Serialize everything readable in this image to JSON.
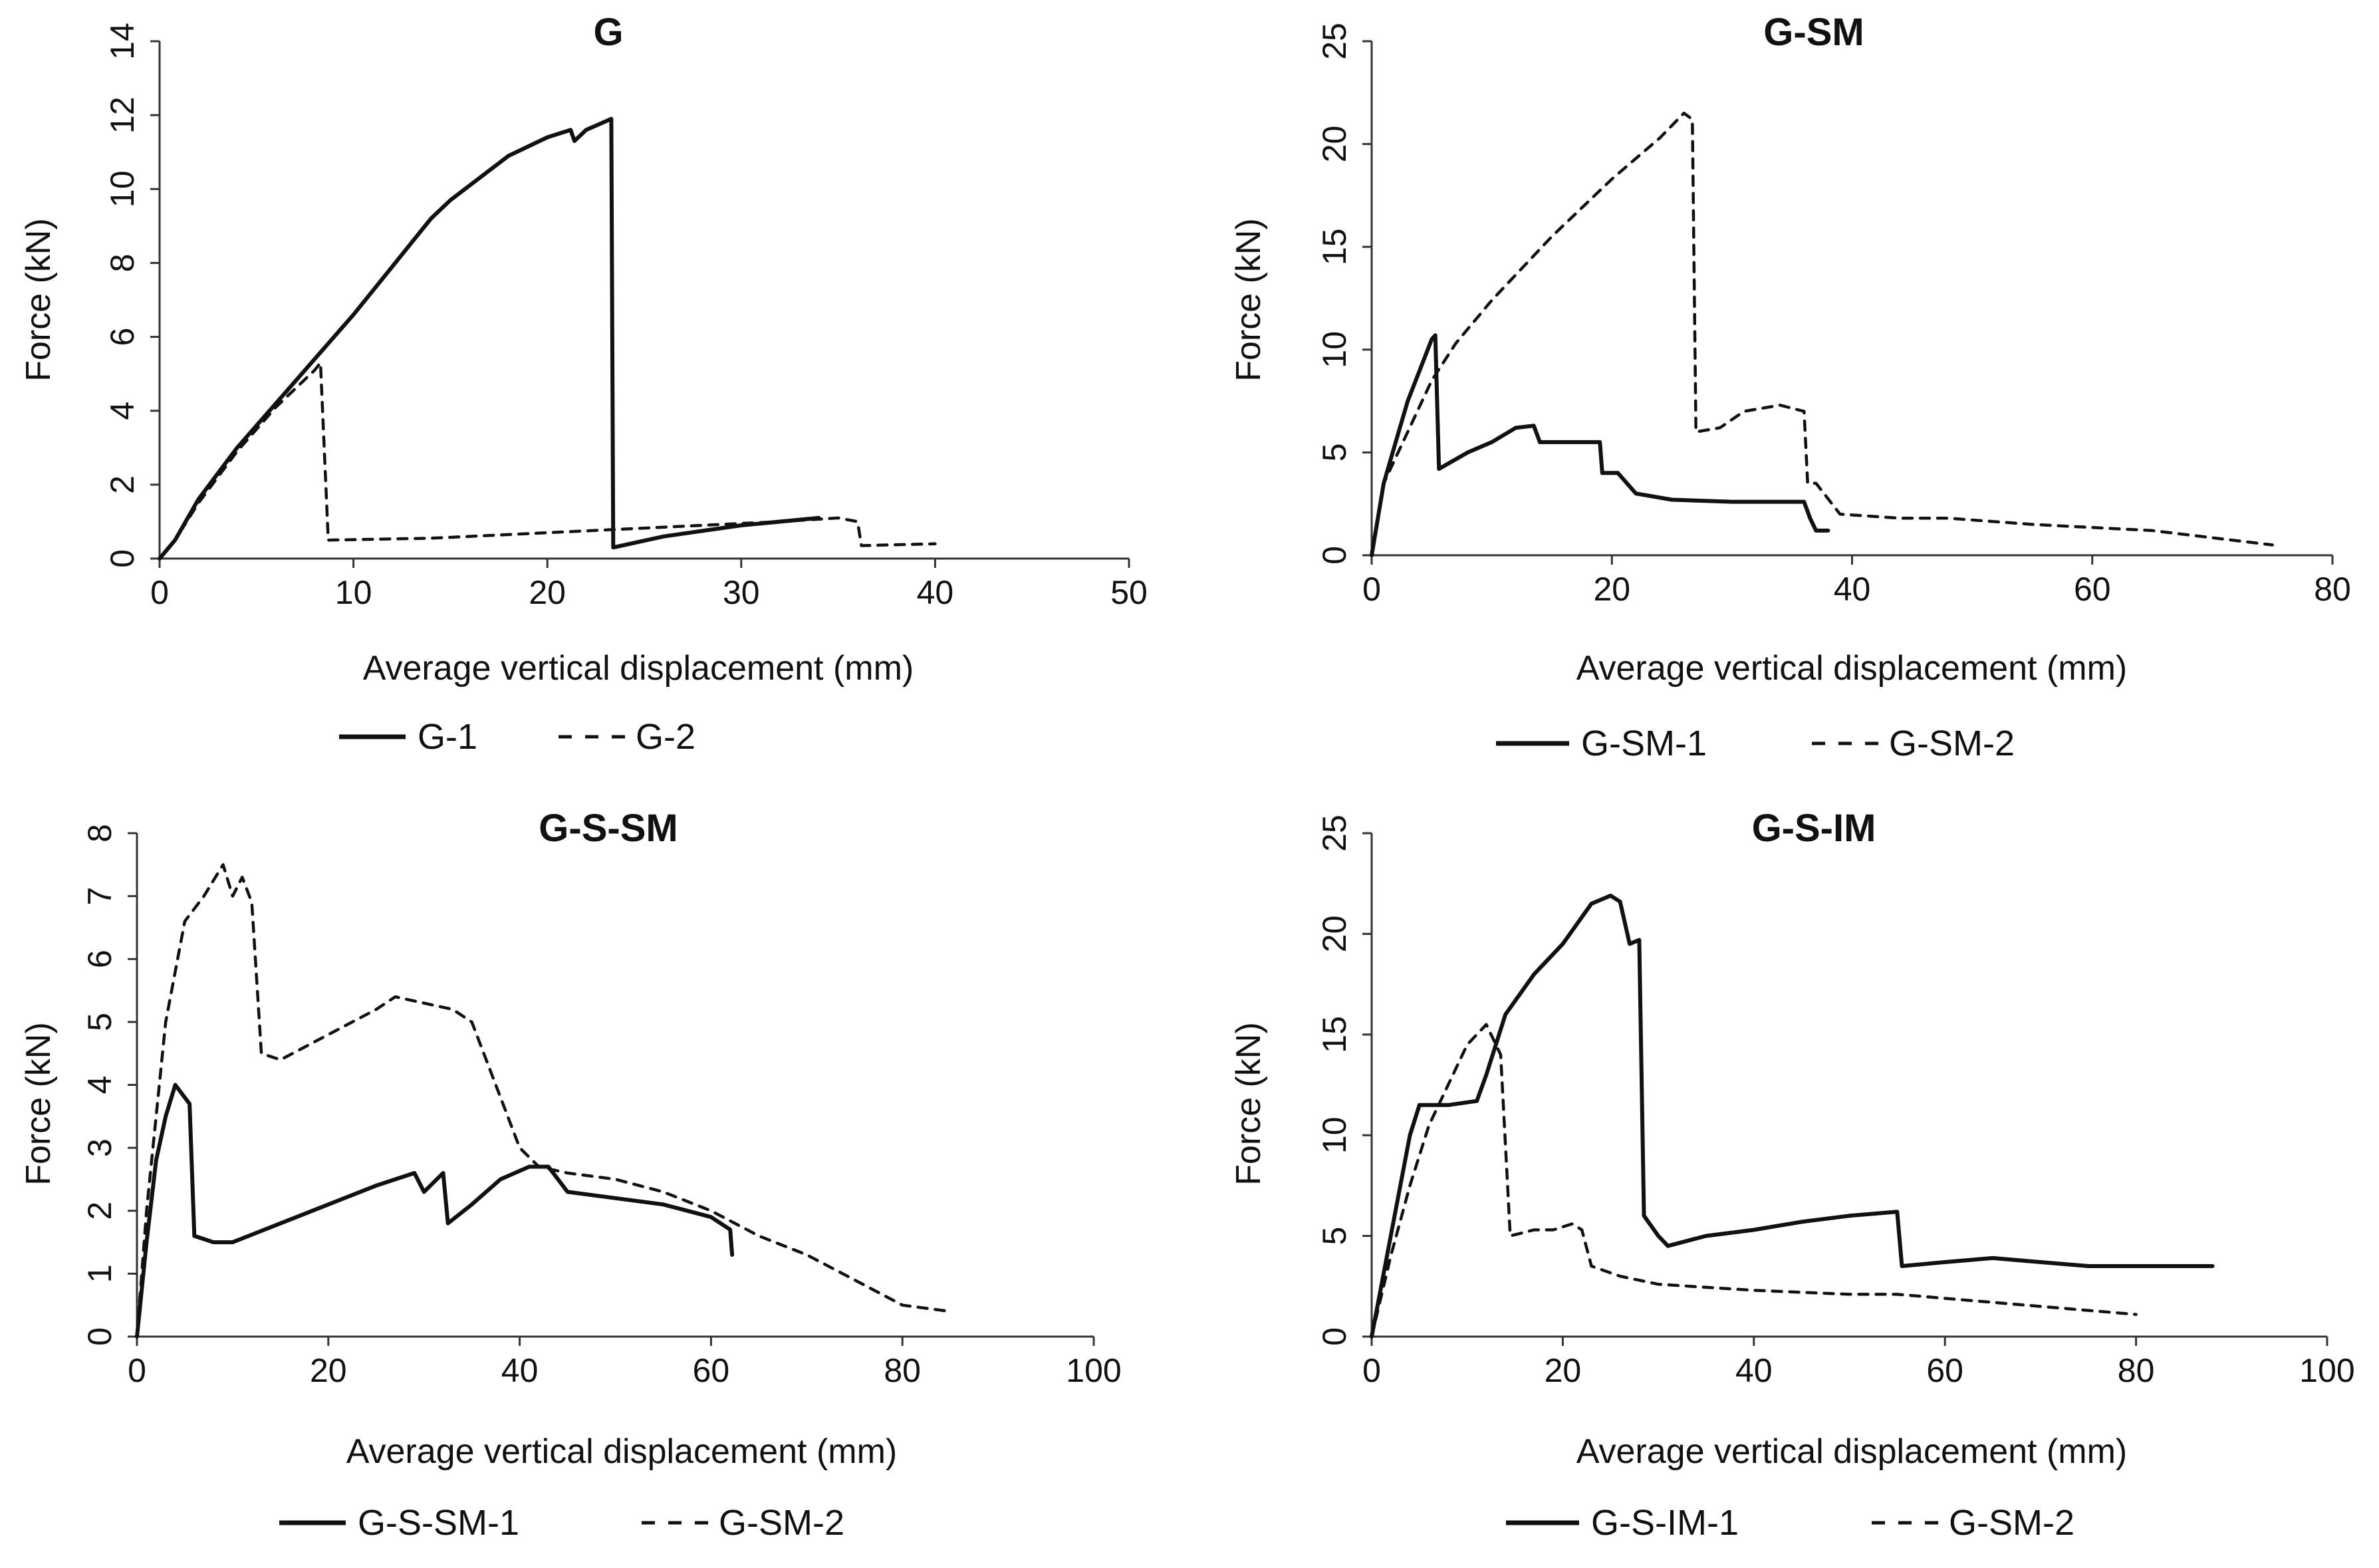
{
  "chart_data": [
    {
      "type": "line",
      "title": "G",
      "xlabel": "Average vertical displacement (mm)",
      "ylabel": "Force (kN)",
      "xlim": [
        0,
        50
      ],
      "ylim": [
        0,
        14
      ],
      "xticks": [
        0,
        10,
        20,
        30,
        40,
        50
      ],
      "yticks": [
        0,
        2,
        4,
        6,
        8,
        10,
        12,
        14
      ],
      "grid": false,
      "legend_position": "bottom",
      "series": [
        {
          "name": "G-1",
          "style": "solid",
          "points": [
            [
              0,
              0
            ],
            [
              0.8,
              0.5
            ],
            [
              2,
              1.6
            ],
            [
              4,
              3
            ],
            [
              6,
              4.2
            ],
            [
              8,
              5.4
            ],
            [
              10,
              6.6
            ],
            [
              12,
              7.9
            ],
            [
              14,
              9.2
            ],
            [
              15,
              9.7
            ],
            [
              16,
              10.1
            ],
            [
              18,
              10.9
            ],
            [
              20,
              11.4
            ],
            [
              21.2,
              11.6
            ],
            [
              21.4,
              11.3
            ],
            [
              22,
              11.6
            ],
            [
              23.3,
              11.9
            ],
            [
              23.4,
              0.3
            ],
            [
              26,
              0.6
            ],
            [
              30,
              0.9
            ],
            [
              34,
              1.1
            ]
          ]
        },
        {
          "name": "G-2",
          "style": "dashed",
          "points": [
            [
              0,
              0
            ],
            [
              0.8,
              0.5
            ],
            [
              2,
              1.5
            ],
            [
              4,
              2.9
            ],
            [
              6,
              4.1
            ],
            [
              8,
              5.1
            ],
            [
              8.3,
              5.3
            ],
            [
              8.7,
              0.5
            ],
            [
              14,
              0.55
            ],
            [
              20,
              0.7
            ],
            [
              28,
              0.9
            ],
            [
              32,
              1.0
            ],
            [
              35,
              1.1
            ],
            [
              36,
              1.0
            ],
            [
              36.2,
              0.35
            ],
            [
              40,
              0.4
            ]
          ]
        }
      ]
    },
    {
      "type": "line",
      "title": "G-SM",
      "xlabel": "Average vertical displacement (mm)",
      "ylabel": "Force (kN)",
      "xlim": [
        0,
        80
      ],
      "ylim": [
        0,
        25
      ],
      "xticks": [
        0,
        20,
        40,
        60,
        80
      ],
      "yticks": [
        0,
        5,
        10,
        15,
        20,
        25
      ],
      "grid": false,
      "legend_position": "bottom",
      "series": [
        {
          "name": "G-SM-1",
          "style": "solid",
          "points": [
            [
              0,
              0
            ],
            [
              1,
              3.5
            ],
            [
              2,
              5.5
            ],
            [
              3,
              7.5
            ],
            [
              4,
              9
            ],
            [
              5,
              10.5
            ],
            [
              5.3,
              10.7
            ],
            [
              5.6,
              4.2
            ],
            [
              8,
              5
            ],
            [
              10,
              5.5
            ],
            [
              12,
              6.2
            ],
            [
              13.5,
              6.3
            ],
            [
              14,
              5.5
            ],
            [
              16,
              5.5
            ],
            [
              19,
              5.5
            ],
            [
              19.2,
              4
            ],
            [
              20.5,
              4
            ],
            [
              22,
              3
            ],
            [
              25,
              2.7
            ],
            [
              30,
              2.6
            ],
            [
              34,
              2.6
            ],
            [
              36,
              2.6
            ],
            [
              36.5,
              1.8
            ],
            [
              37,
              1.2
            ],
            [
              38,
              1.2
            ]
          ]
        },
        {
          "name": "G-SM-2",
          "style": "dashed",
          "points": [
            [
              0,
              0
            ],
            [
              1,
              3.5
            ],
            [
              3,
              6
            ],
            [
              5,
              8.5
            ],
            [
              7,
              10.3
            ],
            [
              10,
              12.4
            ],
            [
              15,
              15.5
            ],
            [
              20,
              18.3
            ],
            [
              24,
              20.3
            ],
            [
              26,
              21.5
            ],
            [
              26.7,
              21.2
            ],
            [
              27,
              6
            ],
            [
              29,
              6.2
            ],
            [
              31,
              7
            ],
            [
              34,
              7.3
            ],
            [
              36,
              7
            ],
            [
              36.3,
              3.5
            ],
            [
              37,
              3.5
            ],
            [
              39,
              2
            ],
            [
              44,
              1.8
            ],
            [
              48,
              1.8
            ],
            [
              55,
              1.5
            ],
            [
              65,
              1.2
            ],
            [
              75,
              0.5
            ]
          ]
        }
      ]
    },
    {
      "type": "line",
      "title": "G-S-SM",
      "xlabel": "Average vertical displacement (mm)",
      "ylabel": "Force (kN)",
      "xlim": [
        0,
        100
      ],
      "ylim": [
        0,
        8
      ],
      "xticks": [
        0,
        20,
        40,
        60,
        80,
        100
      ],
      "yticks": [
        0,
        1,
        2,
        3,
        4,
        5,
        6,
        7,
        8
      ],
      "grid": false,
      "legend_position": "bottom",
      "series": [
        {
          "name": "G-S-SM-1",
          "style": "solid",
          "points": [
            [
              0,
              0
            ],
            [
              1,
              1.5
            ],
            [
              2,
              2.8
            ],
            [
              3,
              3.5
            ],
            [
              4,
              4
            ],
            [
              5,
              3.8
            ],
            [
              5.5,
              3.7
            ],
            [
              6,
              1.6
            ],
            [
              8,
              1.5
            ],
            [
              10,
              1.5
            ],
            [
              15,
              1.8
            ],
            [
              20,
              2.1
            ],
            [
              25,
              2.4
            ],
            [
              29,
              2.6
            ],
            [
              30,
              2.3
            ],
            [
              32,
              2.6
            ],
            [
              32.5,
              1.8
            ],
            [
              35,
              2.1
            ],
            [
              38,
              2.5
            ],
            [
              41,
              2.7
            ],
            [
              43,
              2.7
            ],
            [
              45,
              2.3
            ],
            [
              50,
              2.2
            ],
            [
              55,
              2.1
            ],
            [
              60,
              1.9
            ],
            [
              62,
              1.7
            ],
            [
              62.2,
              1.3
            ]
          ]
        },
        {
          "name": "G-SM-2",
          "style": "dashed",
          "points": [
            [
              0,
              0
            ],
            [
              1,
              2
            ],
            [
              3,
              5
            ],
            [
              5,
              6.6
            ],
            [
              7,
              7.0
            ],
            [
              9,
              7.5
            ],
            [
              10,
              7.0
            ],
            [
              11,
              7.3
            ],
            [
              12,
              6.9
            ],
            [
              13,
              4.5
            ],
            [
              15,
              4.4
            ],
            [
              20,
              4.8
            ],
            [
              25,
              5.2
            ],
            [
              27,
              5.4
            ],
            [
              30,
              5.3
            ],
            [
              33,
              5.2
            ],
            [
              35,
              5.0
            ],
            [
              38,
              3.8
            ],
            [
              40,
              3.0
            ],
            [
              42,
              2.7
            ],
            [
              45,
              2.6
            ],
            [
              50,
              2.5
            ],
            [
              55,
              2.3
            ],
            [
              60,
              2.0
            ],
            [
              65,
              1.6
            ],
            [
              70,
              1.3
            ],
            [
              75,
              0.9
            ],
            [
              80,
              0.5
            ],
            [
              85,
              0.4
            ]
          ]
        }
      ]
    },
    {
      "type": "line",
      "title": "G-S-IM",
      "xlabel": "Average vertical displacement (mm)",
      "ylabel": "Force (kN)",
      "xlim": [
        0,
        100
      ],
      "ylim": [
        0,
        25
      ],
      "xticks": [
        0,
        20,
        40,
        60,
        80,
        100
      ],
      "yticks": [
        0,
        5,
        10,
        15,
        20,
        25
      ],
      "grid": false,
      "legend_position": "bottom",
      "series": [
        {
          "name": "G-S-IM-1",
          "style": "solid",
          "points": [
            [
              0,
              0
            ],
            [
              2,
              5
            ],
            [
              4,
              10
            ],
            [
              5,
              11.5
            ],
            [
              8,
              11.5
            ],
            [
              11,
              11.7
            ],
            [
              12,
              13
            ],
            [
              14,
              16
            ],
            [
              17,
              18
            ],
            [
              20,
              19.5
            ],
            [
              23,
              21.5
            ],
            [
              25,
              21.9
            ],
            [
              26,
              21.6
            ],
            [
              27,
              19.5
            ],
            [
              28,
              19.7
            ],
            [
              28.5,
              6
            ],
            [
              30,
              5
            ],
            [
              31,
              4.5
            ],
            [
              35,
              5
            ],
            [
              40,
              5.3
            ],
            [
              45,
              5.7
            ],
            [
              50,
              6
            ],
            [
              55,
              6.2
            ],
            [
              55.5,
              3.5
            ],
            [
              60,
              3.7
            ],
            [
              65,
              3.9
            ],
            [
              70,
              3.7
            ],
            [
              75,
              3.5
            ],
            [
              80,
              3.5
            ],
            [
              88,
              3.5
            ]
          ]
        },
        {
          "name": "G-SM-2",
          "style": "dashed",
          "points": [
            [
              0,
              0
            ],
            [
              2,
              4
            ],
            [
              4,
              7.5
            ],
            [
              6,
              10.5
            ],
            [
              8,
              12.5
            ],
            [
              10,
              14.5
            ],
            [
              12,
              15.5
            ],
            [
              13.5,
              14
            ],
            [
              14.5,
              5
            ],
            [
              17,
              5.3
            ],
            [
              19,
              5.3
            ],
            [
              21,
              5.6
            ],
            [
              22,
              5.3
            ],
            [
              23,
              3.5
            ],
            [
              26,
              3
            ],
            [
              30,
              2.6
            ],
            [
              40,
              2.3
            ],
            [
              50,
              2.1
            ],
            [
              55,
              2.1
            ],
            [
              60,
              1.9
            ],
            [
              70,
              1.5
            ],
            [
              80,
              1.1
            ]
          ]
        }
      ]
    }
  ]
}
